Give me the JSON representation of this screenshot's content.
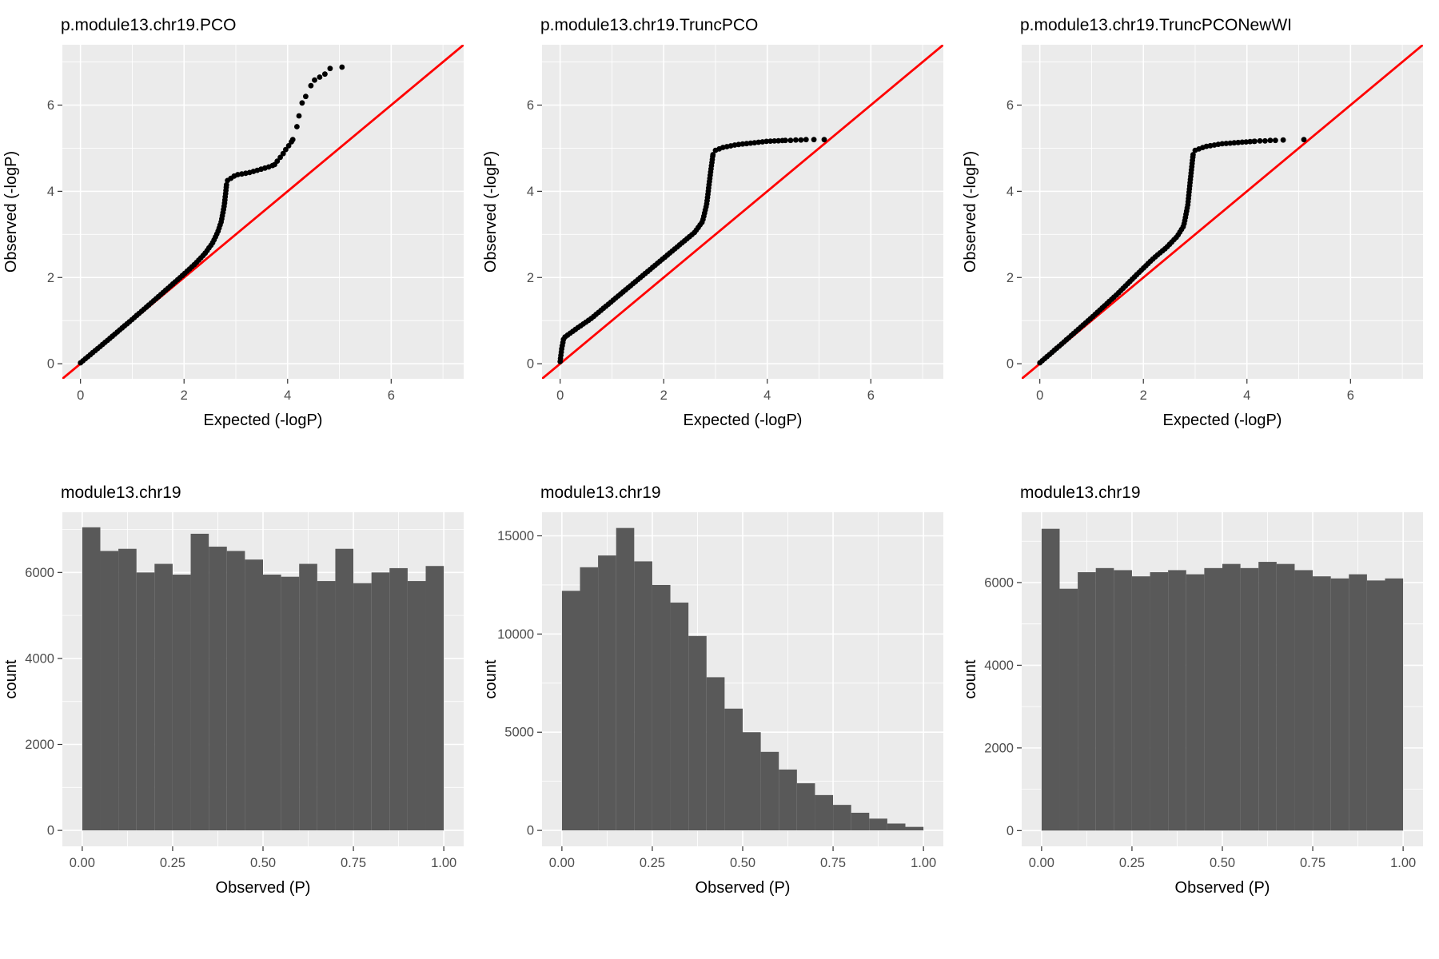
{
  "styles": {
    "panel_bg": "#EBEBEB",
    "grid_major": "#FFFFFF",
    "grid_minor": "#FFFFFF",
    "bar_fill": "#595959",
    "point_color": "#000000",
    "ref_line_color": "#FF0000",
    "axis_text_color": "#4D4D4D",
    "axis_title_color": "#000000",
    "tick_mark_color": "#333333"
  },
  "chart_data": [
    {
      "type": "scatter",
      "variant": "qq",
      "title": "p.module13.chr19.PCO",
      "xlabel": "Expected (-logP)",
      "ylabel": "Observed (-logP)",
      "xlim": [
        -0.35,
        7.4
      ],
      "ylim": [
        -0.35,
        7.4
      ],
      "xticks": [
        0,
        2,
        4,
        6
      ],
      "xtick_labels": [
        "0",
        "2",
        "4",
        "6"
      ],
      "yticks": [
        0,
        2,
        4,
        6
      ],
      "ytick_labels": [
        "0",
        "2",
        "4",
        "6"
      ],
      "ref_line": {
        "slope": 1,
        "intercept": 0
      },
      "segments": [
        {
          "spacing": 4,
          "pts": [
            [
              0,
              0.02
            ],
            [
              0.5,
              0.52
            ],
            [
              1,
              1.03
            ],
            [
              1.5,
              1.55
            ],
            [
              2,
              2.08
            ],
            [
              2.2,
              2.3
            ],
            [
              2.4,
              2.55
            ],
            [
              2.55,
              2.8
            ],
            [
              2.65,
              3.05
            ],
            [
              2.72,
              3.3
            ],
            [
              2.78,
              3.7
            ],
            [
              2.82,
              4.15
            ]
          ]
        },
        {
          "spacing": 5,
          "pts": [
            [
              2.84,
              4.25
            ],
            [
              3.0,
              4.38
            ],
            [
              3.25,
              4.43
            ],
            [
              3.45,
              4.5
            ],
            [
              3.65,
              4.57
            ],
            [
              3.75,
              4.62
            ]
          ]
        },
        {
          "spacing": 6,
          "pts": [
            [
              3.8,
              4.7
            ],
            [
              3.9,
              4.85
            ],
            [
              3.98,
              5.0
            ],
            [
              4.05,
              5.1
            ],
            [
              4.1,
              5.2
            ]
          ]
        }
      ],
      "points": [
        [
          4.18,
          5.5
        ],
        [
          4.22,
          5.75
        ],
        [
          4.28,
          6.05
        ],
        [
          4.35,
          6.2
        ],
        [
          4.45,
          6.45
        ],
        [
          4.52,
          6.58
        ],
        [
          4.62,
          6.65
        ],
        [
          4.72,
          6.72
        ],
        [
          4.82,
          6.85
        ],
        [
          5.05,
          6.88
        ]
      ]
    },
    {
      "type": "scatter",
      "variant": "qq",
      "title": "p.module13.chr19.TruncPCO",
      "xlabel": "Expected (-logP)",
      "ylabel": "Observed (-logP)",
      "xlim": [
        -0.35,
        7.4
      ],
      "ylim": [
        -0.35,
        7.4
      ],
      "xticks": [
        0,
        2,
        4,
        6
      ],
      "xtick_labels": [
        "0",
        "2",
        "4",
        "6"
      ],
      "yticks": [
        0,
        2,
        4,
        6
      ],
      "ytick_labels": [
        "0",
        "2",
        "4",
        "6"
      ],
      "ref_line": {
        "slope": 1,
        "intercept": 0
      },
      "segments": [
        {
          "spacing": 4,
          "pts": [
            [
              0,
              0.05
            ],
            [
              0.03,
              0.35
            ],
            [
              0.07,
              0.6
            ],
            [
              0.3,
              0.8
            ],
            [
              0.6,
              1.05
            ],
            [
              1.0,
              1.45
            ],
            [
              1.4,
              1.85
            ],
            [
              1.8,
              2.25
            ],
            [
              2.1,
              2.55
            ],
            [
              2.4,
              2.85
            ],
            [
              2.6,
              3.05
            ],
            [
              2.75,
              3.3
            ],
            [
              2.83,
              3.7
            ],
            [
              2.89,
              4.3
            ],
            [
              2.95,
              4.85
            ]
          ]
        },
        {
          "spacing": 5,
          "pts": [
            [
              3.0,
              4.95
            ],
            [
              3.15,
              5.02
            ],
            [
              3.4,
              5.08
            ],
            [
              3.7,
              5.12
            ],
            [
              4.0,
              5.16
            ],
            [
              4.35,
              5.18
            ]
          ]
        }
      ],
      "points": [
        [
          4.45,
          5.18
        ],
        [
          4.55,
          5.19
        ],
        [
          4.65,
          5.19
        ],
        [
          4.75,
          5.2
        ],
        [
          4.9,
          5.2
        ],
        [
          5.1,
          5.2
        ]
      ]
    },
    {
      "type": "scatter",
      "variant": "qq",
      "title": "p.module13.chr19.TruncPCONewWI",
      "xlabel": "Expected (-logP)",
      "ylabel": "Observed (-logP)",
      "xlim": [
        -0.35,
        7.4
      ],
      "ylim": [
        -0.35,
        7.4
      ],
      "xticks": [
        0,
        2,
        4,
        6
      ],
      "xtick_labels": [
        "0",
        "2",
        "4",
        "6"
      ],
      "yticks": [
        0,
        2,
        4,
        6
      ],
      "ytick_labels": [
        "0",
        "2",
        "4",
        "6"
      ],
      "ref_line": {
        "slope": 1,
        "intercept": 0
      },
      "segments": [
        {
          "spacing": 4,
          "pts": [
            [
              0,
              0.02
            ],
            [
              0.5,
              0.54
            ],
            [
              1.0,
              1.07
            ],
            [
              1.5,
              1.62
            ],
            [
              1.9,
              2.1
            ],
            [
              2.2,
              2.45
            ],
            [
              2.45,
              2.7
            ],
            [
              2.65,
              2.95
            ],
            [
              2.78,
              3.2
            ],
            [
              2.86,
              3.7
            ],
            [
              2.91,
              4.3
            ],
            [
              2.96,
              4.85
            ]
          ]
        },
        {
          "spacing": 5,
          "pts": [
            [
              3.0,
              4.95
            ],
            [
              3.2,
              5.04
            ],
            [
              3.5,
              5.1
            ],
            [
              3.8,
              5.13
            ],
            [
              4.15,
              5.16
            ]
          ]
        }
      ],
      "points": [
        [
          4.25,
          5.17
        ],
        [
          4.35,
          5.17
        ],
        [
          4.45,
          5.18
        ],
        [
          4.55,
          5.18
        ],
        [
          4.7,
          5.19
        ],
        [
          5.1,
          5.2
        ]
      ]
    },
    {
      "type": "bar",
      "variant": "histogram",
      "title": "module13.chr19",
      "xlabel": "Observed (P)",
      "ylabel": "count",
      "xlim": [
        -0.055,
        1.055
      ],
      "ylim": [
        -370,
        7400
      ],
      "xticks": [
        0,
        0.25,
        0.5,
        0.75,
        1
      ],
      "xtick_labels": [
        "0.00",
        "0.25",
        "0.50",
        "0.75",
        "1.00"
      ],
      "yticks": [
        0,
        2000,
        4000,
        6000
      ],
      "ytick_labels": [
        "0",
        "2000",
        "4000",
        "6000"
      ],
      "bin_start": 0,
      "bin_width": 0.05,
      "counts": [
        7050,
        6500,
        6550,
        6000,
        6200,
        5950,
        6900,
        6600,
        6500,
        6300,
        5950,
        5900,
        6200,
        5800,
        6550,
        5750,
        6000,
        6100,
        5800,
        6150
      ]
    },
    {
      "type": "bar",
      "variant": "histogram",
      "title": "module13.chr19",
      "xlabel": "Observed (P)",
      "ylabel": "count",
      "xlim": [
        -0.055,
        1.055
      ],
      "ylim": [
        -810,
        16200
      ],
      "xticks": [
        0,
        0.25,
        0.5,
        0.75,
        1
      ],
      "xtick_labels": [
        "0.00",
        "0.25",
        "0.50",
        "0.75",
        "1.00"
      ],
      "yticks": [
        0,
        5000,
        10000,
        15000
      ],
      "ytick_labels": [
        "0",
        "5000",
        "10000",
        "15000"
      ],
      "bin_start": 0,
      "bin_width": 0.05,
      "counts": [
        12200,
        13400,
        14000,
        15400,
        13700,
        12500,
        11600,
        9900,
        7800,
        6200,
        5000,
        4000,
        3100,
        2400,
        1800,
        1300,
        900,
        600,
        350,
        180
      ]
    },
    {
      "type": "bar",
      "variant": "histogram",
      "title": "module13.chr19",
      "xlabel": "Observed (P)",
      "ylabel": "count",
      "xlim": [
        -0.055,
        1.055
      ],
      "ylim": [
        -380,
        7700
      ],
      "xticks": [
        0,
        0.25,
        0.5,
        0.75,
        1
      ],
      "xtick_labels": [
        "0.00",
        "0.25",
        "0.50",
        "0.75",
        "1.00"
      ],
      "yticks": [
        0,
        2000,
        4000,
        6000
      ],
      "ytick_labels": [
        "0",
        "2000",
        "4000",
        "6000"
      ],
      "bin_start": 0,
      "bin_width": 0.05,
      "counts": [
        7300,
        5850,
        6250,
        6350,
        6300,
        6150,
        6250,
        6300,
        6200,
        6350,
        6450,
        6350,
        6500,
        6450,
        6300,
        6150,
        6100,
        6200,
        6050,
        6100
      ]
    }
  ]
}
